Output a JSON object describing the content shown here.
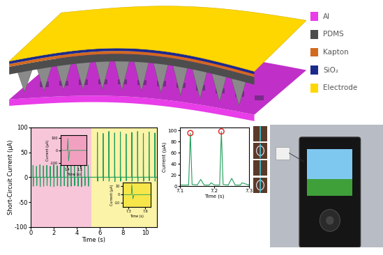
{
  "schematic": {
    "legend": [
      {
        "label": "Al",
        "color": "#e83de8"
      },
      {
        "label": "PDMS",
        "color": "#4d4d4d"
      },
      {
        "label": "Kapton",
        "color": "#d2691e"
      },
      {
        "label": "SiO₂",
        "color": "#1a2a8c"
      },
      {
        "label": "Electrode",
        "color": "#ffd700"
      }
    ]
  },
  "chart_data": [
    {
      "type": "line",
      "x_label": "Time (s)",
      "y_label": "Short-Circuit Current (μA)",
      "xlim": [
        0,
        11
      ],
      "ylim": [
        -100,
        100
      ],
      "xticks": [
        0,
        2,
        4,
        6,
        8,
        10
      ],
      "yticks": [
        -100,
        -50,
        0,
        50,
        100
      ],
      "grid": false,
      "shaded_regions": [
        {
          "x": [
            0,
            5.3
          ],
          "color": "#f7c6d9"
        },
        {
          "x": [
            5.3,
            11
          ],
          "color": "#fbf3a8"
        }
      ],
      "series": [
        {
          "color": "#1f9e5a",
          "x": [
            0,
            0.2,
            0.21,
            0.23,
            0.25,
            0.5,
            0.51,
            0.53,
            0.55,
            0.8,
            0.81,
            0.83,
            0.85,
            1.1,
            1.11,
            1.13,
            1.15,
            1.4,
            1.41,
            1.43,
            1.45,
            1.7,
            1.71,
            1.73,
            1.75,
            2.0,
            2.01,
            2.03,
            2.05,
            2.3,
            2.31,
            2.33,
            2.35,
            2.6,
            2.61,
            2.63,
            2.65,
            2.9,
            2.91,
            2.93,
            2.95,
            3.2,
            3.21,
            3.23,
            3.25,
            3.5,
            3.51,
            3.53,
            3.55,
            3.8,
            3.81,
            3.83,
            3.85,
            4.1,
            4.11,
            4.13,
            4.15,
            4.4,
            4.41,
            4.43,
            4.45,
            4.7,
            4.71,
            4.73,
            4.75,
            5.0,
            5.01,
            5.03,
            5.05,
            5.8,
            5.81,
            5.83,
            5.85,
            6.3,
            6.31,
            6.33,
            6.35,
            6.8,
            6.81,
            6.83,
            6.85,
            7.3,
            7.31,
            7.33,
            7.35,
            7.8,
            7.81,
            7.83,
            7.85,
            8.3,
            8.31,
            8.33,
            8.35,
            8.8,
            8.81,
            8.83,
            8.85,
            9.3,
            9.31,
            9.33,
            9.35,
            9.8,
            9.81,
            9.83,
            9.85,
            10.3,
            10.31,
            10.33,
            10.35,
            10.8,
            10.81,
            10.83,
            10.85,
            11
          ],
          "values": [
            0,
            0,
            24,
            -18,
            0,
            0,
            22,
            -17,
            0,
            0,
            25,
            -19,
            0,
            0,
            23,
            -18,
            0,
            0,
            24,
            -17,
            0,
            0,
            22,
            -18,
            0,
            0,
            25,
            -19,
            0,
            0,
            23,
            -17,
            0,
            0,
            24,
            -18,
            0,
            0,
            22,
            -17,
            0,
            0,
            25,
            -19,
            0,
            0,
            23,
            -18,
            0,
            0,
            24,
            -17,
            0,
            0,
            22,
            -18,
            0,
            0,
            25,
            -19,
            0,
            0,
            23,
            -17,
            0,
            0,
            24,
            -18,
            0,
            0,
            90,
            -8,
            0,
            0,
            88,
            -7,
            0,
            0,
            92,
            -8,
            0,
            0,
            89,
            -9,
            0,
            0,
            91,
            -8,
            0,
            0,
            87,
            -7,
            0,
            0,
            90,
            -8,
            0,
            0,
            92,
            -9,
            0,
            0,
            88,
            -8,
            0,
            0,
            91,
            -7,
            0,
            0,
            89,
            -8,
            0,
            0
          ]
        }
      ],
      "insets": [
        {
          "type": "line",
          "x_label": "Time (s)",
          "y_label": "Current (μA)",
          "xlim": [
            1.35,
            1.55
          ],
          "ylim": [
            -120,
            120
          ],
          "xticks": [
            1.4,
            1.5
          ],
          "yticks": [
            -100,
            0,
            100
          ],
          "series": [
            {
              "color": "#1f9e5a",
              "x": [
                1.35,
                1.4,
                1.405,
                1.41,
                1.42,
                1.55
              ],
              "values": [
                0,
                0,
                95,
                -85,
                0,
                0
              ]
            }
          ]
        },
        {
          "type": "line",
          "x_label": "Time (s)",
          "y_label": "Current (μA)",
          "xlim": [
            7.2,
            7.7
          ],
          "ylim": [
            -15,
            15
          ],
          "xticks": [
            7.3,
            7.6
          ],
          "yticks": [
            -10,
            0,
            10
          ],
          "series": [
            {
              "color": "#1f9e5a",
              "x": [
                7.2,
                7.35,
                7.36,
                7.38,
                7.4,
                7.7
              ],
              "values": [
                0,
                0,
                12,
                -5,
                0,
                0
              ]
            }
          ]
        }
      ]
    },
    {
      "type": "line",
      "x_label": "Time (s)",
      "y_label": "Current (μA)",
      "xlim": [
        7.1,
        7.3
      ],
      "ylim": [
        0,
        105
      ],
      "xticks": [
        7.1,
        7.2,
        7.3
      ],
      "yticks": [
        0,
        20,
        40,
        60,
        80,
        100
      ],
      "grid": false,
      "series": [
        {
          "color": "#1f9e5a",
          "x": [
            7.1,
            7.125,
            7.13,
            7.135,
            7.15,
            7.16,
            7.17,
            7.185,
            7.19,
            7.2,
            7.215,
            7.22,
            7.225,
            7.24,
            7.25,
            7.26,
            7.275,
            7.28,
            7.3
          ],
          "values": [
            2,
            2,
            95,
            3,
            2,
            12,
            2,
            2,
            6,
            2,
            2,
            98,
            3,
            2,
            14,
            2,
            2,
            6,
            2
          ]
        },
        {
          "type": "scatter",
          "marker": "circle",
          "color": "#e02020",
          "x": [
            7.13,
            7.22
          ],
          "values": [
            95,
            98
          ]
        }
      ]
    }
  ]
}
